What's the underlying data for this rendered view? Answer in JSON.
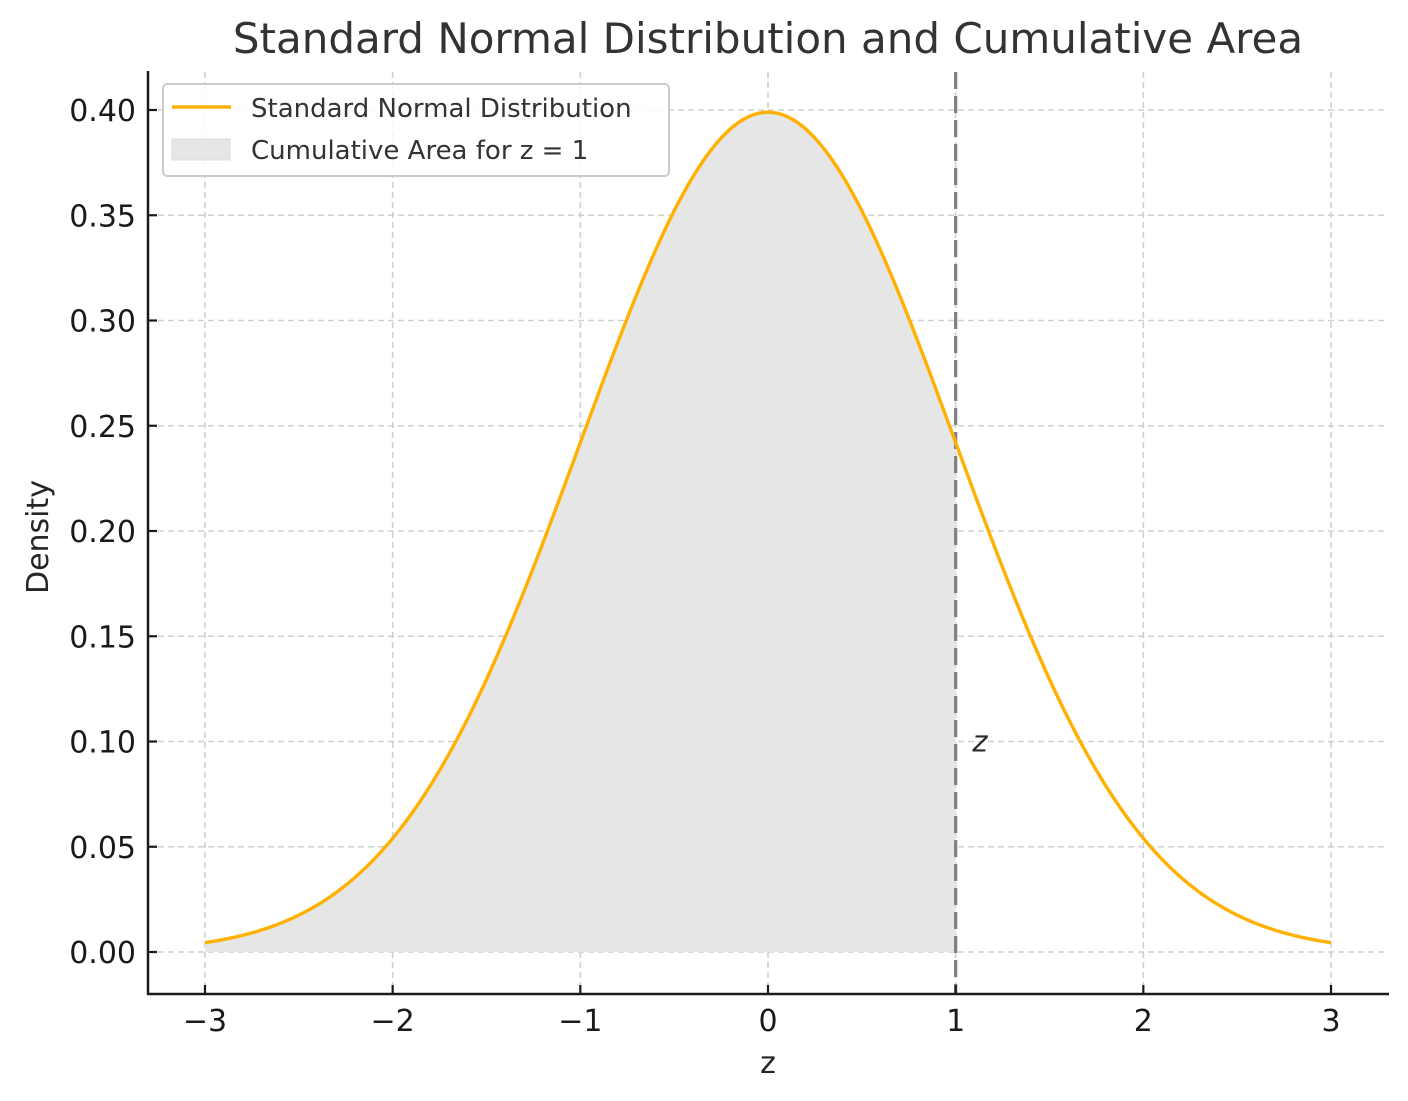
{
  "chart_data": {
    "type": "line",
    "title": "Standard Normal Distribution and Cumulative Area",
    "xlabel": "z",
    "ylabel": "Density",
    "xlim": [
      -3.3,
      3.3
    ],
    "ylim": [
      -0.02,
      0.42
    ],
    "x_ticks": [
      -3,
      -2,
      -1,
      0,
      1,
      2,
      3
    ],
    "x_tick_labels": [
      "−3",
      "−2",
      "−1",
      "0",
      "1",
      "2",
      "3"
    ],
    "y_ticks": [
      0.0,
      0.05,
      0.1,
      0.15,
      0.2,
      0.25,
      0.3,
      0.35,
      0.4
    ],
    "y_tick_labels": [
      "0.00",
      "0.05",
      "0.10",
      "0.15",
      "0.20",
      "0.25",
      "0.30",
      "0.35",
      "0.40"
    ],
    "grid": true,
    "legend_position": "upper left",
    "series": [
      {
        "name": "Standard Normal Distribution",
        "kind": "line",
        "color": "#FFB000",
        "x": [
          -3,
          -2.5,
          -2,
          -1.5,
          -1,
          -0.5,
          0,
          0.5,
          1,
          1.5,
          2,
          2.5,
          3
        ],
        "values": [
          0.0044,
          0.0175,
          0.054,
          0.1295,
          0.242,
          0.3521,
          0.3989,
          0.3521,
          0.242,
          0.1295,
          0.054,
          0.0175,
          0.0044
        ]
      },
      {
        "name": "Cumulative Area for z = 1",
        "kind": "area",
        "color": "#E6E6E6",
        "x_range": [
          -3,
          1
        ]
      }
    ],
    "annotations": [
      {
        "type": "vline",
        "x": 1,
        "style": "dashed",
        "color": "#808080"
      },
      {
        "type": "text",
        "text": "z",
        "x": 1.1,
        "y": 0.1,
        "style": "italic"
      }
    ]
  },
  "legend": {
    "items": [
      {
        "label": "Standard Normal Distribution"
      },
      {
        "label": "Cumulative Area for z = 1"
      }
    ]
  }
}
